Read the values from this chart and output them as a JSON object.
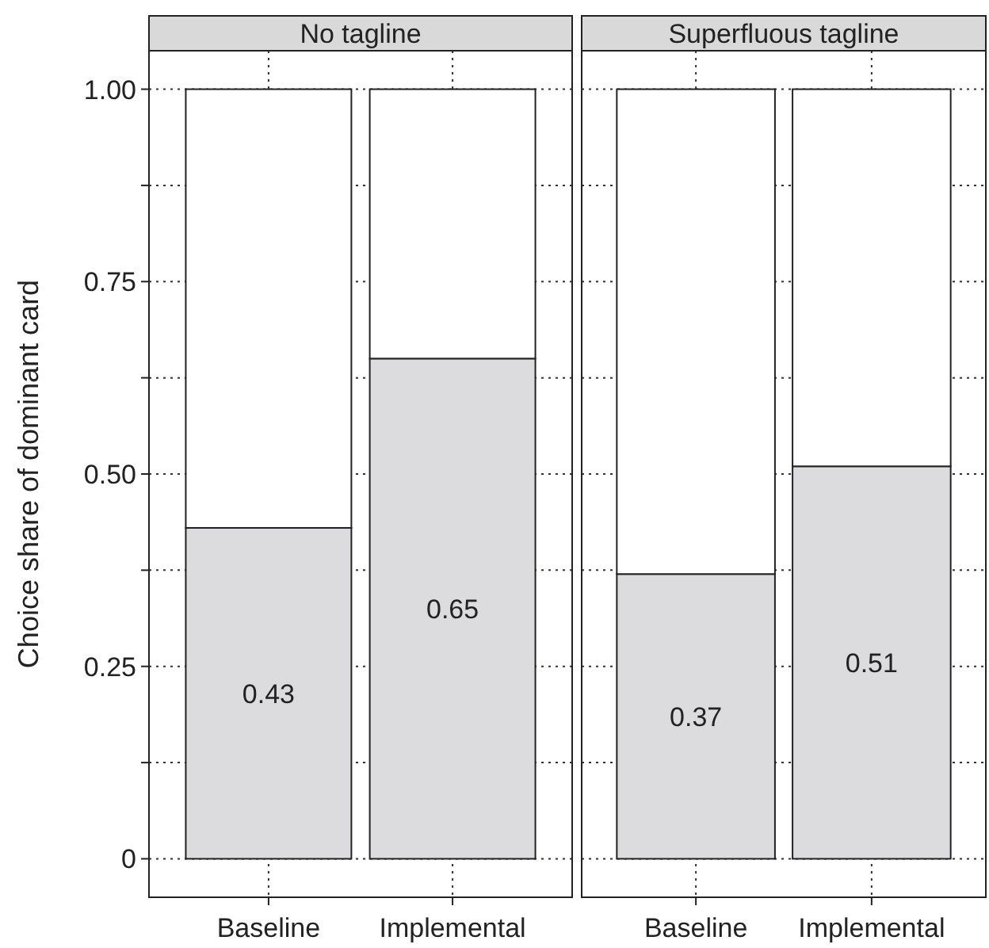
{
  "chart_data": [
    {
      "type": "bar",
      "title": "No tagline",
      "ylabel": "Choice share of dominant card",
      "categories": [
        "Baseline",
        "Implemental"
      ],
      "stacked": true,
      "grid": true,
      "ylim": [
        -0.05,
        1.05
      ],
      "yticks": [
        {
          "value": 0,
          "label": "0"
        },
        {
          "value": 0.125,
          "label": null
        },
        {
          "value": 0.25,
          "label": "0.25"
        },
        {
          "value": 0.375,
          "label": null
        },
        {
          "value": 0.5,
          "label": "0.50"
        },
        {
          "value": 0.625,
          "label": null
        },
        {
          "value": 0.75,
          "label": "0.75"
        },
        {
          "value": 0.875,
          "label": null
        },
        {
          "value": 1,
          "label": "1.00"
        }
      ],
      "series": [
        {
          "color": "#dcdcde",
          "values": [
            0.43,
            0.65
          ],
          "value_labels": [
            "0.43",
            "0.65"
          ]
        },
        {
          "color": "#ffffff",
          "values": [
            0.57,
            0.35
          ]
        }
      ]
    },
    {
      "type": "bar",
      "title": "Superfluous tagline",
      "categories": [
        "Baseline",
        "Implemental"
      ],
      "stacked": true,
      "grid": true,
      "tick_labels": "x",
      "ylim": [
        -0.05,
        1.05
      ],
      "yticks": [
        {
          "value": 0,
          "label": null
        },
        {
          "value": 0.125,
          "label": null
        },
        {
          "value": 0.25,
          "label": null
        },
        {
          "value": 0.375,
          "label": null
        },
        {
          "value": 0.5,
          "label": null
        },
        {
          "value": 0.625,
          "label": null
        },
        {
          "value": 0.75,
          "label": null
        },
        {
          "value": 0.875,
          "label": null
        },
        {
          "value": 1,
          "label": null
        }
      ],
      "series": [
        {
          "color": "#dcdcde",
          "values": [
            0.37,
            0.51
          ],
          "value_labels": [
            "0.37",
            "0.51"
          ]
        },
        {
          "color": "#ffffff",
          "values": [
            0.63,
            0.49
          ]
        }
      ]
    }
  ]
}
